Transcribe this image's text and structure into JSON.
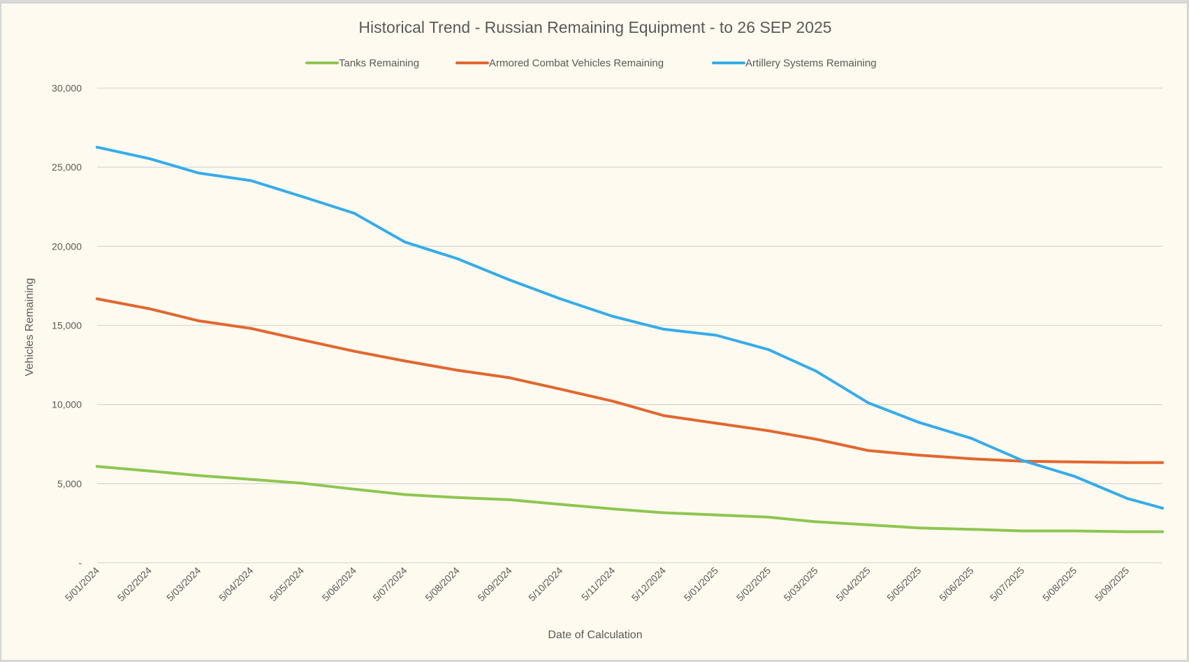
{
  "chart_data": {
    "type": "line",
    "title": "Historical Trend - Russian Remaining Equipment - to 26 SEP 2025",
    "xlabel": "Date of Calculation",
    "ylabel": "Vehicles Remaining",
    "ylim": [
      0,
      30000
    ],
    "y_ticks": [
      "-",
      "5,000",
      "10,000",
      "15,000",
      "20,000",
      "25,000",
      "30,000"
    ],
    "x_tick_labels": [
      "5/01/2024",
      "5/02/2024",
      "5/03/2024",
      "5/04/2024",
      "5/05/2024",
      "5/06/2024",
      "5/07/2024",
      "5/08/2024",
      "5/09/2024",
      "5/10/2024",
      "5/11/2024",
      "5/12/2024",
      "5/01/2025",
      "5/02/2025",
      "5/03/2025",
      "5/04/2025",
      "5/05/2025",
      "5/06/2025",
      "5/07/2025",
      "5/08/2025",
      "5/09/2025"
    ],
    "x": [
      "2024-01-05",
      "2024-02-05",
      "2024-03-05",
      "2024-04-05",
      "2024-05-05",
      "2024-06-05",
      "2024-07-05",
      "2024-08-05",
      "2024-09-05",
      "2024-10-05",
      "2024-11-05",
      "2024-12-05",
      "2025-01-05",
      "2025-02-05",
      "2025-03-05",
      "2025-04-05",
      "2025-05-05",
      "2025-06-05",
      "2025-07-05",
      "2025-08-05",
      "2025-09-05",
      "2025-09-26"
    ],
    "grid": true,
    "legend_position": "top",
    "series": [
      {
        "name": "Tanks Remaining",
        "color": "#8fc652",
        "values": [
          6090,
          5800,
          5510,
          5270,
          5030,
          4650,
          4310,
          4120,
          3980,
          3690,
          3400,
          3160,
          3020,
          2880,
          2590,
          2400,
          2200,
          2110,
          2010,
          2010,
          1960,
          1960
        ]
      },
      {
        "name": "Armored Combat Vehicles Remaining",
        "color": "#e2672f",
        "values": [
          16680,
          16050,
          15290,
          14810,
          14090,
          13370,
          12750,
          12170,
          11690,
          10970,
          10210,
          9300,
          8820,
          8340,
          7810,
          7090,
          6800,
          6570,
          6420,
          6370,
          6330,
          6330
        ]
      },
      {
        "name": "Artillery Systems Remaining",
        "color": "#36acea",
        "values": [
          26260,
          25540,
          24630,
          24150,
          23150,
          22090,
          20270,
          19220,
          17870,
          16680,
          15570,
          14760,
          14380,
          13470,
          12120,
          10110,
          8870,
          7860,
          6470,
          5460,
          4070,
          3450
        ]
      }
    ]
  }
}
